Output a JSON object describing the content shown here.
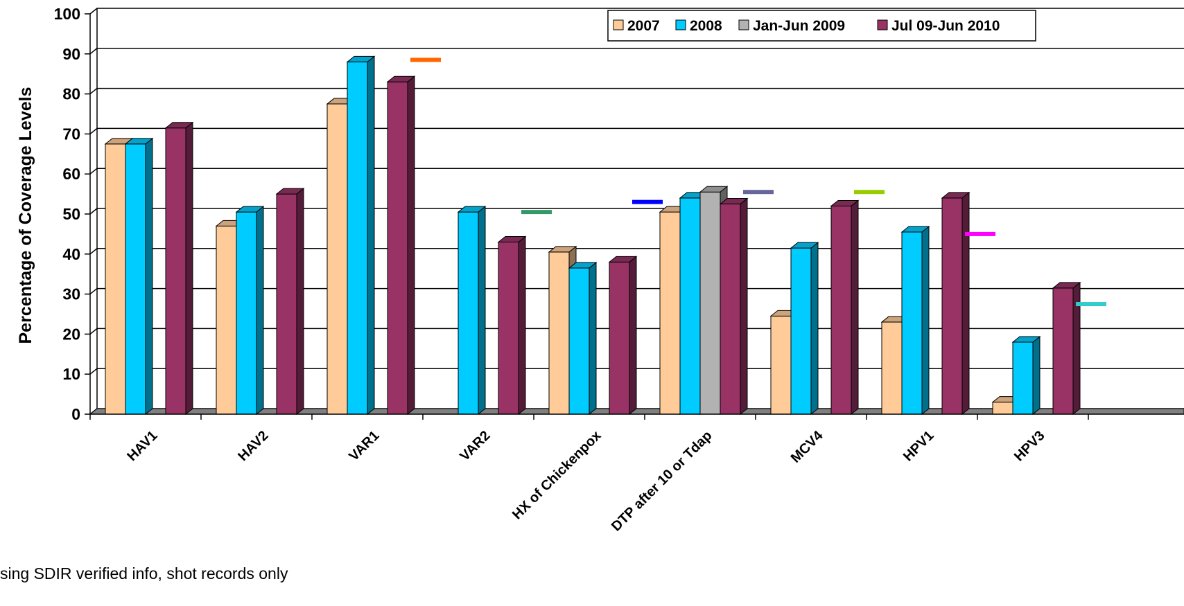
{
  "chart_data": {
    "type": "bar",
    "ylabel": "Percentage of Coverage Levels",
    "xlabel": "",
    "ylim": [
      0,
      100
    ],
    "yticks": [
      0,
      10,
      20,
      30,
      40,
      50,
      60,
      70,
      80,
      90,
      100
    ],
    "grid": true,
    "legend_position": "top-right",
    "categories": [
      "HAV1",
      "HAV2",
      "VAR1",
      "VAR2",
      "HX of Chickenpox",
      "DTP after 10 or Tdap",
      "MCV4",
      "HPV1",
      "HPV3"
    ],
    "series": [
      {
        "name": "2007",
        "color": "#FFCC99",
        "values": [
          67.5,
          47,
          77.5,
          null,
          40.5,
          50.5,
          24.5,
          23,
          3
        ]
      },
      {
        "name": "2008",
        "color": "#00CCFF",
        "values": [
          67.5,
          50.5,
          88,
          50.5,
          36.5,
          54,
          41.5,
          45.5,
          18
        ]
      },
      {
        "name": "Jan-Jun 2009",
        "color": "#B2B2B2",
        "values": [
          null,
          null,
          null,
          null,
          null,
          55.5,
          null,
          null,
          null
        ]
      },
      {
        "name": "Jul 09-Jun 2010",
        "color": "#993366",
        "values": [
          71.5,
          55,
          83,
          43,
          38,
          52.5,
          52,
          54,
          31.5
        ]
      }
    ],
    "target_markers": [
      {
        "category": "VAR1",
        "value": 88.5,
        "color": "#FF6600"
      },
      {
        "category": "VAR2",
        "value": 50.5,
        "color": "#339966"
      },
      {
        "category": "HX of Chickenpox",
        "value": 53,
        "color": "#0000FF"
      },
      {
        "category": "DTP after 10 or Tdap",
        "value": 55.5,
        "color": "#666699"
      },
      {
        "category": "MCV4",
        "value": 55.5,
        "color": "#99CC00"
      },
      {
        "category": "HPV1",
        "value": 45,
        "color": "#FF00FF"
      },
      {
        "category": "HPV3",
        "value": 27.5,
        "color": "#33CCCC"
      }
    ]
  },
  "footnote": "sing SDIR verified info, shot records only"
}
